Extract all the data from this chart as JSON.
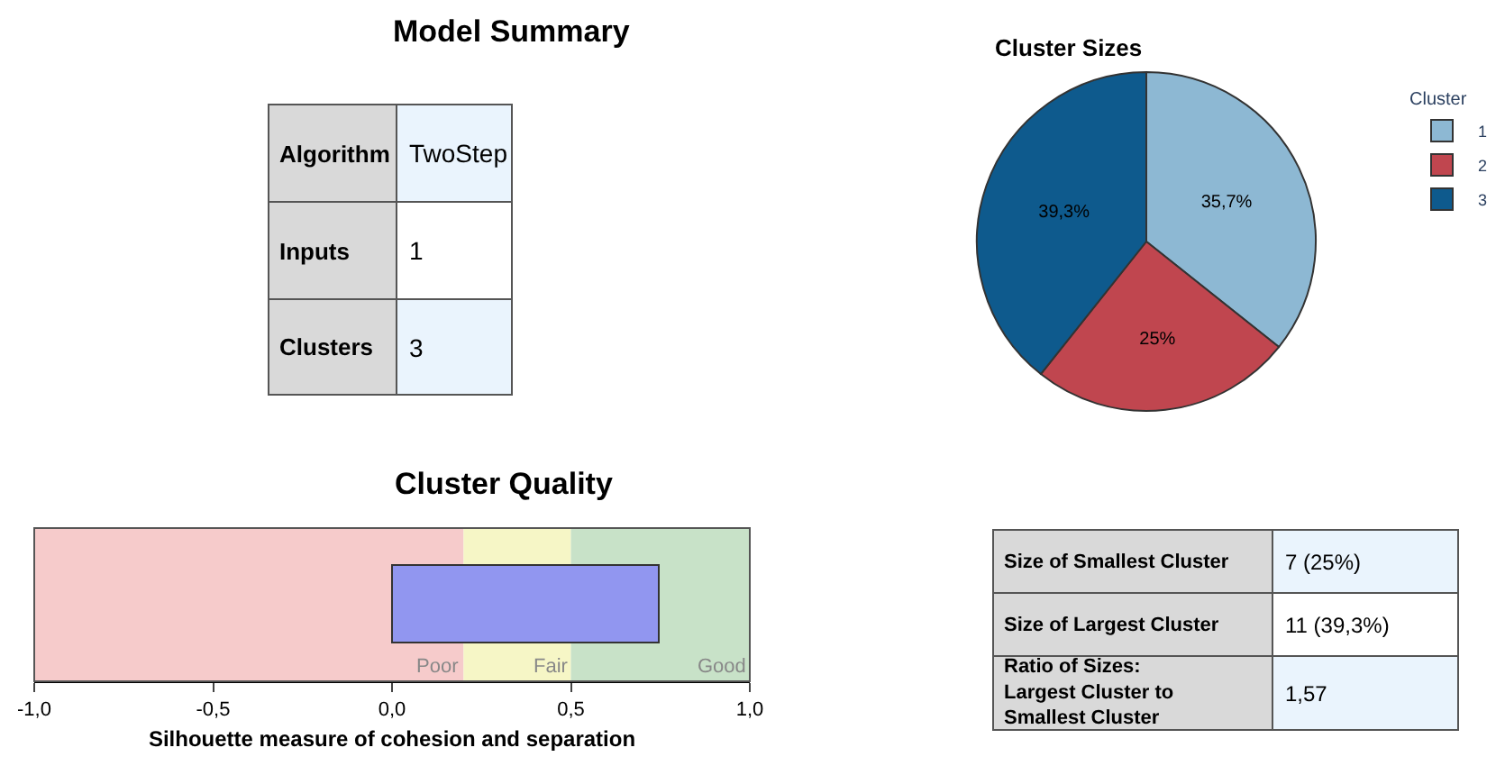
{
  "chart_data": [
    {
      "type": "other",
      "title": "Model Summary",
      "annotations": [
        "Algorithm",
        "TwoStep",
        "Inputs",
        "1",
        "Clusters",
        "3"
      ]
    },
    {
      "type": "pie",
      "title": "Cluster Sizes",
      "categories": [
        "1",
        "2",
        "3"
      ],
      "values": [
        35.7,
        25,
        39.3
      ],
      "colors": [
        "#8db8d3",
        "#c0464f",
        "#0e5a8d"
      ],
      "value_labels": [
        "35,7%",
        "25%",
        "39,3%"
      ],
      "legend_title": "Cluster",
      "legend": "right"
    },
    {
      "type": "bar",
      "title": "Cluster Quality",
      "orientation": "horizontal",
      "categories": [
        null
      ],
      "values": [
        0.75
      ],
      "color": "#9196f0",
      "xlim": [
        -1,
        1
      ],
      "xticks": [
        {
          "value": -1,
          "label": "-1,0"
        },
        {
          "value": -0.5,
          "label": "-0,5"
        },
        {
          "value": 0,
          "label": "0,0"
        },
        {
          "value": 0.5,
          "label": "0,5"
        },
        {
          "value": 1,
          "label": "1,0"
        }
      ],
      "xlabel": "Silhouette measure of cohesion and separation",
      "bands": [
        {
          "axis": "x",
          "from": -1,
          "to": 0.2,
          "label": "Poor",
          "color": "#f6cbcb"
        },
        {
          "axis": "x",
          "from": 0.2,
          "to": 0.5,
          "label": "Fair",
          "color": "#f6f6c6"
        },
        {
          "axis": "x",
          "from": 0.5,
          "to": 1,
          "label": "Good",
          "color": "#c8e2c8"
        }
      ]
    },
    {
      "type": "other",
      "annotations": [
        "Size of Smallest Cluster",
        "7 (25%)",
        "Size of Largest Cluster",
        "11 (39,3%)",
        "Ratio of Sizes:\nLargest Cluster to\nSmallest Cluster",
        "1,57"
      ]
    }
  ]
}
